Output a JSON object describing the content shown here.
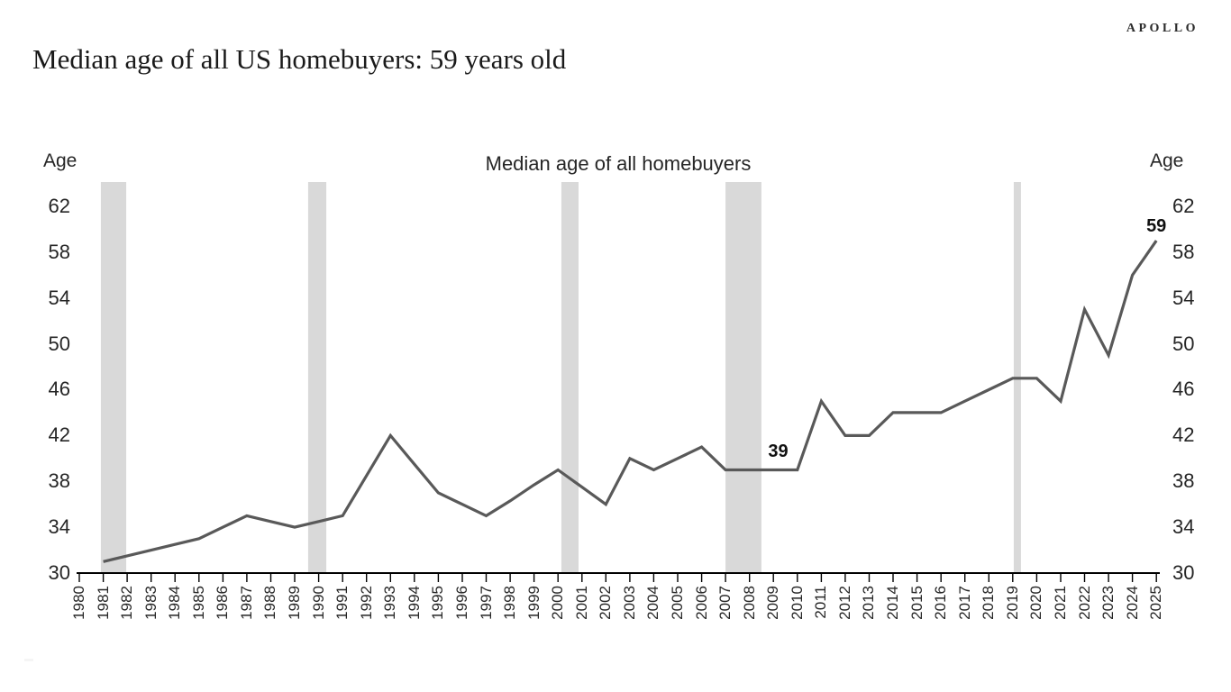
{
  "header": {
    "title": "Median age of all US homebuyers: 59 years old",
    "brand": "APOLLO"
  },
  "chart": {
    "title": "Median age of all homebuyers",
    "left_axis_label": "Age",
    "right_axis_label": "Age"
  },
  "chart_data": {
    "type": "line",
    "title": "Median age of all homebuyers",
    "xlabel": "",
    "ylabel": "Age",
    "xlim": [
      1980,
      2025
    ],
    "ylim": [
      30,
      64
    ],
    "yticks": [
      30,
      34,
      38,
      42,
      46,
      50,
      54,
      58,
      62
    ],
    "xticks": [
      1980,
      1981,
      1982,
      1983,
      1984,
      1985,
      1986,
      1987,
      1988,
      1989,
      1990,
      1991,
      1992,
      1993,
      1994,
      1995,
      1996,
      1997,
      1998,
      1999,
      2000,
      2001,
      2002,
      2003,
      2004,
      2005,
      2006,
      2007,
      2008,
      2009,
      2010,
      2011,
      2012,
      2013,
      2014,
      2015,
      2016,
      2017,
      2018,
      2019,
      2020,
      2021,
      2022,
      2023,
      2024,
      2025
    ],
    "grid": false,
    "legend": "none",
    "series": [
      {
        "name": "Median age of all homebuyers",
        "x": [
          1981,
          1982,
          1983,
          1984,
          1985,
          1986,
          1987,
          1988,
          1989,
          1990,
          1991,
          1992,
          1993,
          1994,
          1995,
          1996,
          1997,
          1998,
          1999,
          2000,
          2001,
          2002,
          2003,
          2004,
          2005,
          2006,
          2007,
          2008,
          2009,
          2010,
          2011,
          2012,
          2013,
          2014,
          2015,
          2016,
          2017,
          2018,
          2019,
          2020,
          2021,
          2022,
          2023,
          2024,
          2025
        ],
        "values": [
          31,
          31.5,
          32,
          32.5,
          33,
          34,
          35,
          34.5,
          34,
          34.5,
          35,
          38.5,
          42,
          39.5,
          37,
          36,
          35,
          36.3,
          37.7,
          39,
          37.5,
          36,
          40,
          39,
          40,
          41,
          39,
          39,
          39,
          39,
          45,
          42,
          42,
          44,
          44,
          44,
          45,
          46,
          47,
          47,
          45,
          53,
          49,
          56,
          59
        ]
      }
    ],
    "recession_bands": [
      [
        1980.9,
        1981.96
      ],
      [
        1989.56,
        1990.32
      ],
      [
        2000.14,
        2000.86
      ],
      [
        2007.0,
        2008.5
      ],
      [
        2019.04,
        2019.34
      ]
    ],
    "annotations": [
      {
        "x": 2009.2,
        "y": 40.6,
        "text": "39"
      },
      {
        "x": 2025.0,
        "y": 60.3,
        "text": "59"
      }
    ],
    "colors": {
      "line": "#595959",
      "band": "#d9d9d9",
      "axis": "#000000",
      "text": "#262626"
    }
  }
}
